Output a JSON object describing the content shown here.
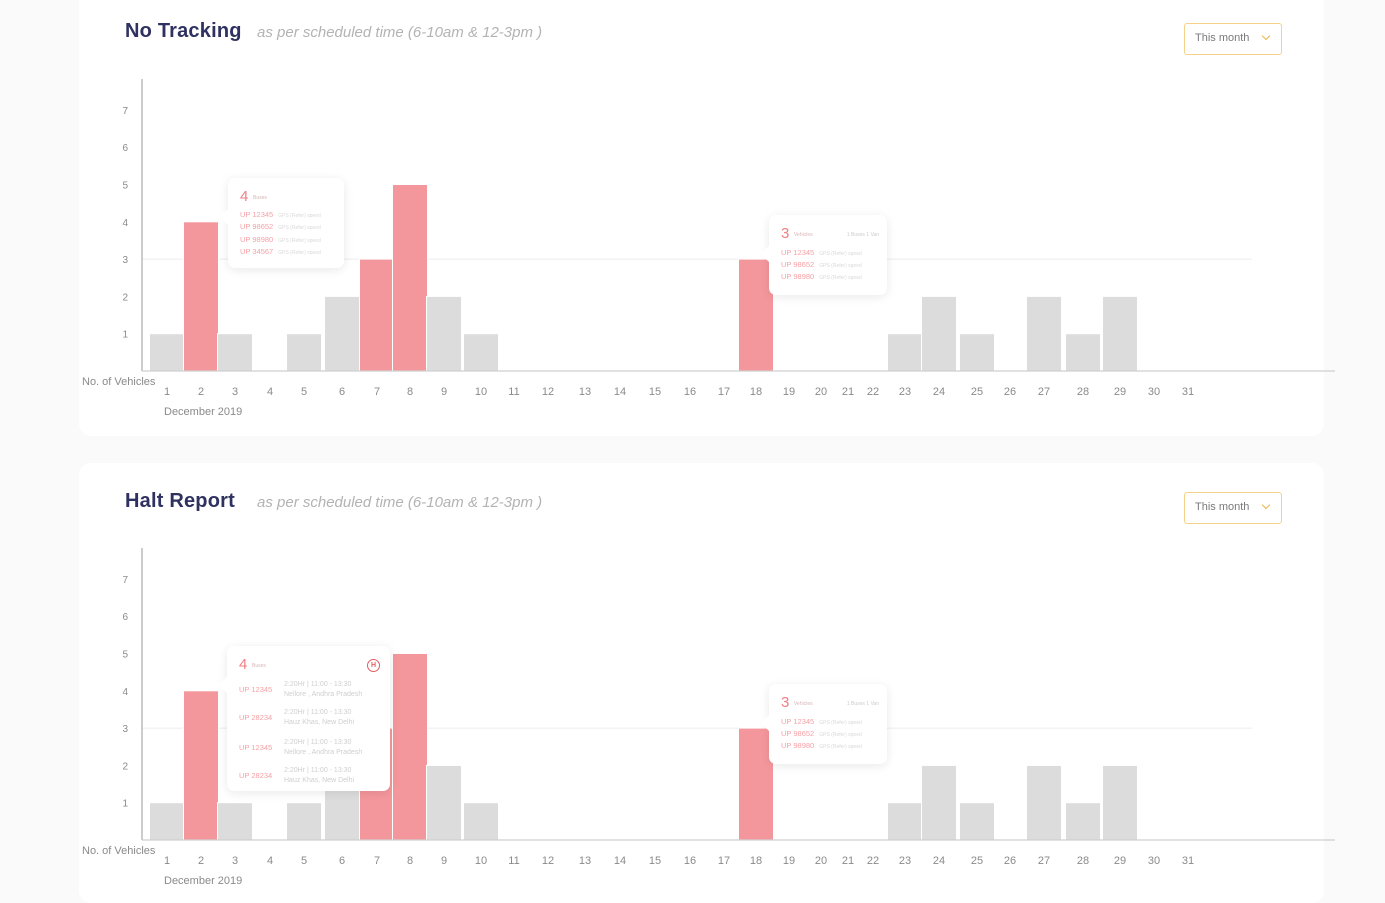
{
  "colors": {
    "highlight": "#f4979c",
    "normal": "#dcdcdc",
    "accent": "#f27e84",
    "title": "#2f3160"
  },
  "panels": [
    {
      "title": "No Tracking",
      "subtitle": "as per scheduled time (6-10am & 12-3pm )",
      "dropdown": "This month"
    },
    {
      "title": "Halt Report",
      "subtitle": "as per scheduled time (6-10am & 12-3pm )",
      "dropdown": "This month"
    }
  ],
  "tooltips": {
    "nt_day2": {
      "count": "4",
      "count_label": "Buses",
      "rows": [
        {
          "plate": "UP 12345",
          "detail": "GPS (Refer) speed"
        },
        {
          "plate": "UP 98652",
          "detail": "GPS (Refer) speed"
        },
        {
          "plate": "UP 98980",
          "detail": "GPS (Refer) speed"
        },
        {
          "plate": "UP 34567",
          "detail": "GPS (Refer) speed"
        }
      ]
    },
    "nt_day18": {
      "count": "3",
      "count_label": "Vehicles",
      "right": "1 Buses  1 Van",
      "rows": [
        {
          "plate": "UP 12345",
          "detail": "GPS (Refer) speed"
        },
        {
          "plate": "UP 98652",
          "detail": "GPS (Refer) speed"
        },
        {
          "plate": "UP 98980",
          "detail": "GPS (Refer) speed"
        }
      ]
    },
    "hr_day2": {
      "count": "4",
      "count_label": "Buses",
      "icon": "H",
      "rows": [
        {
          "plate": "UP 12345",
          "time": "2:20Hr | 11:00 - 13:30",
          "place": "Nellore , Andhra Pradesh"
        },
        {
          "plate": "UP 28234",
          "time": "2:20Hr | 11:00 - 13:30",
          "place": "Hauz Khas, New Delhi"
        },
        {
          "plate": "UP 12345",
          "time": "2:20Hr | 11:00 - 13:30",
          "place": "Nellore , Andhra Pradesh"
        },
        {
          "plate": "UP 28234",
          "time": "2:20Hr | 11:00 - 13:30",
          "place": "Hauz Khas, New Delhi"
        }
      ]
    },
    "hr_day18": {
      "count": "3",
      "count_label": "Vehicles",
      "right": "1 Buses  1 Van",
      "rows": [
        {
          "plate": "UP 12345",
          "detail": "GPS (Refer) speed"
        },
        {
          "plate": "UP 98652",
          "detail": "GPS (Refer) speed"
        },
        {
          "plate": "UP 98980",
          "detail": "GPS (Refer) speed"
        }
      ]
    }
  },
  "chart_data": [
    {
      "type": "bar",
      "title": "No Tracking",
      "ylabel": "No. of Vehicles",
      "xlabel": "December 2019",
      "ylim": [
        0,
        7
      ],
      "yticks": [
        1,
        2,
        3,
        4,
        5,
        6,
        7
      ],
      "reference_line": 3,
      "categories": [
        "1",
        "2",
        "3",
        "4",
        "5",
        "6",
        "7",
        "8",
        "9",
        "10",
        "11",
        "12",
        "13",
        "14",
        "15",
        "16",
        "17",
        "18",
        "19",
        "20",
        "21",
        "22",
        "23",
        "24",
        "25",
        "26",
        "27",
        "28",
        "29",
        "30",
        "31"
      ],
      "values": [
        1,
        4,
        1,
        0,
        1,
        2,
        3,
        5,
        2,
        1,
        0,
        0,
        0,
        0,
        0,
        0,
        0,
        3,
        0,
        0,
        0,
        0,
        1,
        2,
        1,
        0,
        2,
        1,
        2,
        0,
        0
      ],
      "highlighted": [
        "2",
        "7",
        "8",
        "18"
      ]
    },
    {
      "type": "bar",
      "title": "Halt Report",
      "ylabel": "No. of Vehicles",
      "xlabel": "December 2019",
      "ylim": [
        0,
        7
      ],
      "yticks": [
        1,
        2,
        3,
        4,
        5,
        6,
        7
      ],
      "reference_line": 3,
      "categories": [
        "1",
        "2",
        "3",
        "4",
        "5",
        "6",
        "7",
        "8",
        "9",
        "10",
        "11",
        "12",
        "13",
        "14",
        "15",
        "16",
        "17",
        "18",
        "19",
        "20",
        "21",
        "22",
        "23",
        "24",
        "25",
        "26",
        "27",
        "28",
        "29",
        "30",
        "31"
      ],
      "values": [
        1,
        4,
        1,
        0,
        1,
        2,
        3,
        5,
        2,
        1,
        0,
        0,
        0,
        0,
        0,
        0,
        0,
        3,
        0,
        0,
        0,
        0,
        1,
        2,
        1,
        0,
        2,
        1,
        2,
        0,
        0
      ],
      "highlighted": [
        "2",
        "7",
        "8",
        "18"
      ]
    }
  ]
}
